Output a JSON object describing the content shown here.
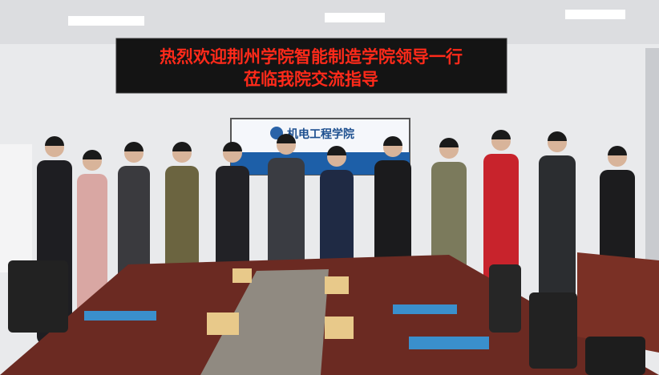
{
  "banner": {
    "line1": "热烈欢迎荆州学院智能制造学院领导一行",
    "line2": "莅临我院交流指导"
  },
  "screen": {
    "title": "机电工程学院"
  }
}
